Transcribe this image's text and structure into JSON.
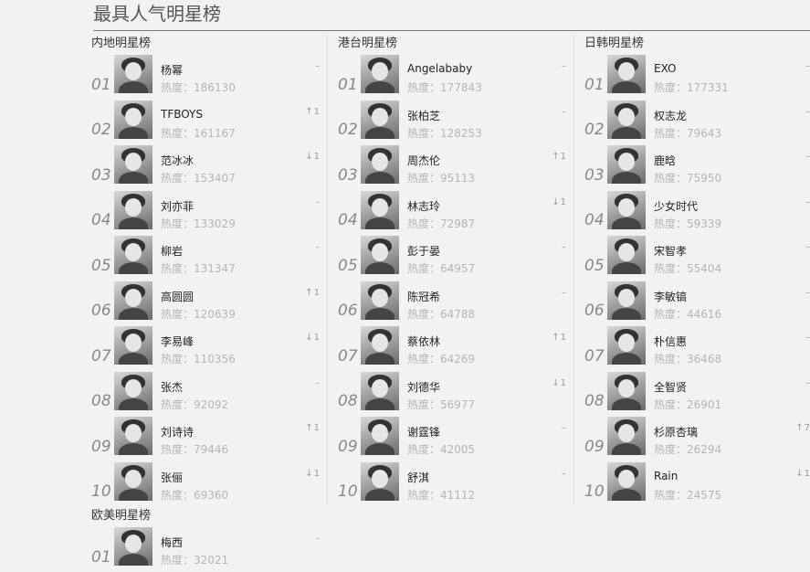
{
  "page": {
    "title": "最具人气明星榜"
  },
  "heat_label": "热度：",
  "sections": [
    {
      "title": "内地明星榜",
      "items": [
        {
          "rank": "01",
          "name": "杨幂",
          "heat": "186130",
          "trend": "–",
          "trend_dir": "none",
          "trend_num": ""
        },
        {
          "rank": "02",
          "name": "TFBOYS",
          "heat": "161167",
          "trend": "",
          "trend_dir": "up",
          "trend_num": "1"
        },
        {
          "rank": "03",
          "name": "范冰冰",
          "heat": "153407",
          "trend": "",
          "trend_dir": "down",
          "trend_num": "1"
        },
        {
          "rank": "04",
          "name": "刘亦菲",
          "heat": "133029",
          "trend": "–",
          "trend_dir": "none",
          "trend_num": ""
        },
        {
          "rank": "05",
          "name": "柳岩",
          "heat": "131347",
          "trend": "–",
          "trend_dir": "none",
          "trend_num": ""
        },
        {
          "rank": "06",
          "name": "高圆圆",
          "heat": "120639",
          "trend": "",
          "trend_dir": "up",
          "trend_num": "1"
        },
        {
          "rank": "07",
          "name": "李易峰",
          "heat": "110356",
          "trend": "",
          "trend_dir": "down",
          "trend_num": "1"
        },
        {
          "rank": "08",
          "name": "张杰",
          "heat": "92092",
          "trend": "–",
          "trend_dir": "none",
          "trend_num": ""
        },
        {
          "rank": "09",
          "name": "刘诗诗",
          "heat": "79446",
          "trend": "",
          "trend_dir": "up",
          "trend_num": "1"
        },
        {
          "rank": "10",
          "name": "张俪",
          "heat": "69360",
          "trend": "",
          "trend_dir": "down",
          "trend_num": "1"
        }
      ]
    },
    {
      "title": "港台明星榜",
      "items": [
        {
          "rank": "01",
          "name": "Angelababy",
          "heat": "177843",
          "trend": "–",
          "trend_dir": "none",
          "trend_num": ""
        },
        {
          "rank": "02",
          "name": "张柏芝",
          "heat": "128253",
          "trend": "–",
          "trend_dir": "none",
          "trend_num": ""
        },
        {
          "rank": "03",
          "name": "周杰伦",
          "heat": "95113",
          "trend": "",
          "trend_dir": "up",
          "trend_num": "1"
        },
        {
          "rank": "04",
          "name": "林志玲",
          "heat": "72987",
          "trend": "",
          "trend_dir": "down",
          "trend_num": "1"
        },
        {
          "rank": "05",
          "name": "彭于晏",
          "heat": "64957",
          "trend": "–",
          "trend_dir": "none",
          "trend_num": ""
        },
        {
          "rank": "06",
          "name": "陈冠希",
          "heat": "64788",
          "trend": "–",
          "trend_dir": "none",
          "trend_num": ""
        },
        {
          "rank": "07",
          "name": "蔡依林",
          "heat": "64269",
          "trend": "",
          "trend_dir": "up",
          "trend_num": "1"
        },
        {
          "rank": "08",
          "name": "刘德华",
          "heat": "56977",
          "trend": "",
          "trend_dir": "down",
          "trend_num": "1"
        },
        {
          "rank": "09",
          "name": "谢霆锋",
          "heat": "42005",
          "trend": "–",
          "trend_dir": "none",
          "trend_num": ""
        },
        {
          "rank": "10",
          "name": "舒淇",
          "heat": "41112",
          "trend": "–",
          "trend_dir": "none",
          "trend_num": ""
        }
      ]
    },
    {
      "title": "日韩明星榜",
      "items": [
        {
          "rank": "01",
          "name": "EXO",
          "heat": "177331",
          "trend": "–",
          "trend_dir": "none",
          "trend_num": ""
        },
        {
          "rank": "02",
          "name": "权志龙",
          "heat": "79643",
          "trend": "–",
          "trend_dir": "none",
          "trend_num": ""
        },
        {
          "rank": "03",
          "name": "鹿晗",
          "heat": "75950",
          "trend": "–",
          "trend_dir": "none",
          "trend_num": ""
        },
        {
          "rank": "04",
          "name": "少女时代",
          "heat": "59339",
          "trend": "–",
          "trend_dir": "none",
          "trend_num": ""
        },
        {
          "rank": "05",
          "name": "宋智孝",
          "heat": "55404",
          "trend": "–",
          "trend_dir": "none",
          "trend_num": ""
        },
        {
          "rank": "06",
          "name": "李敏镐",
          "heat": "44616",
          "trend": "–",
          "trend_dir": "none",
          "trend_num": ""
        },
        {
          "rank": "07",
          "name": "朴信惠",
          "heat": "36468",
          "trend": "–",
          "trend_dir": "none",
          "trend_num": ""
        },
        {
          "rank": "08",
          "name": "全智贤",
          "heat": "26901",
          "trend": "–",
          "trend_dir": "none",
          "trend_num": ""
        },
        {
          "rank": "09",
          "name": "杉原杏璃",
          "heat": "26294",
          "trend": "",
          "trend_dir": "up",
          "trend_num": "7"
        },
        {
          "rank": "10",
          "name": "Rain",
          "heat": "24575",
          "trend": "",
          "trend_dir": "down",
          "trend_num": "1"
        }
      ]
    },
    {
      "title": "欧美明星榜",
      "items": [
        {
          "rank": "01",
          "name": "梅西",
          "heat": "32021",
          "trend": "–",
          "trend_dir": "none",
          "trend_num": ""
        }
      ]
    }
  ]
}
